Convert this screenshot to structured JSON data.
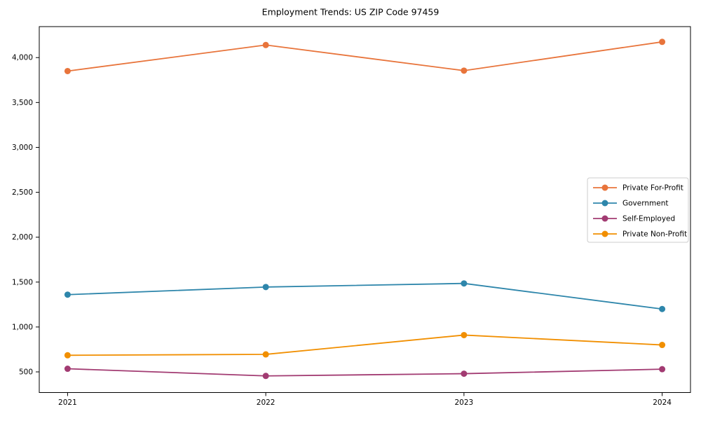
{
  "title": "Employment Trends: US ZIP Code 97459",
  "chart_data": {
    "type": "line",
    "title": "Employment Trends: US ZIP Code 97459",
    "x": [
      2021,
      2022,
      2023,
      2024
    ],
    "series": [
      {
        "name": "Private For-Profit",
        "color": "#e8743b",
        "values": [
          3850,
          4140,
          3855,
          4175
        ]
      },
      {
        "name": "Government",
        "color": "#2e86ab",
        "values": [
          1360,
          1445,
          1485,
          1200
        ]
      },
      {
        "name": "Self-Employed",
        "color": "#a23b72",
        "values": [
          535,
          455,
          480,
          530
        ]
      },
      {
        "name": "Private Non-Profit",
        "color": "#f18f01",
        "values": [
          685,
          695,
          910,
          800
        ]
      }
    ],
    "xlabel": "",
    "ylabel": "",
    "ylim": [
      270,
      4345
    ],
    "yticks": [
      500,
      1000,
      1500,
      2000,
      2500,
      3000,
      3500,
      4000
    ],
    "grid": false,
    "marker": "o",
    "legend_position": "center right"
  }
}
